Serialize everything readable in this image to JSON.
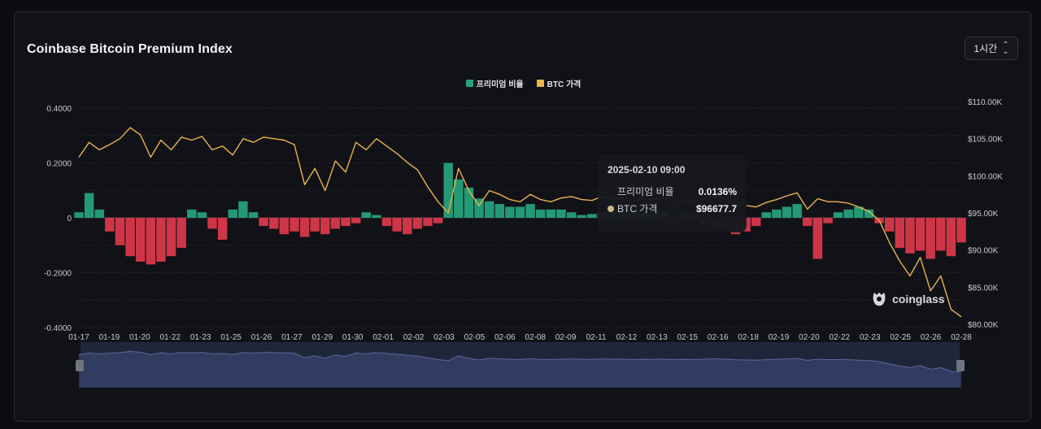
{
  "header": {
    "title": "Coinbase Bitcoin Premium Index",
    "interval_label": "1시간"
  },
  "legend": [
    {
      "label": "프리미엄 비율",
      "color": "#26a17b"
    },
    {
      "label": "BTC 가격",
      "color": "#e9b44c"
    }
  ],
  "tooltip": {
    "datetime": "2025-02-10 09:00",
    "premium_label": "프리미엄 비율",
    "premium_value": "0.0136%",
    "price_label": "BTC 가격",
    "price_value": "$96677.7"
  },
  "watermark": "coinglass",
  "colors": {
    "positive": "#26a17b",
    "negative": "#d9394b",
    "price_line": "#e9b44c",
    "navigator": "#2d3757"
  },
  "chart_data": {
    "type": "bar",
    "title": "Coinbase Bitcoin Premium Index",
    "x_ticks": [
      "01-17",
      "01-19",
      "01-20",
      "01-22",
      "01-23",
      "01-25",
      "01-26",
      "01-27",
      "01-29",
      "01-30",
      "02-01",
      "02-02",
      "02-03",
      "02-05",
      "02-06",
      "02-08",
      "02-09",
      "02-11",
      "02-12",
      "02-13",
      "02-15",
      "02-16",
      "02-18",
      "02-19",
      "02-20",
      "02-22",
      "02-23",
      "02-25",
      "02-26",
      "02-28"
    ],
    "y_left": {
      "ticks": [
        "0.4000",
        "0.2000",
        "0",
        "-0.2000",
        "-0.4000"
      ],
      "range": [
        -0.4,
        0.4
      ]
    },
    "y_right": {
      "ticks": [
        "$110.00K",
        "$105.00K",
        "$100.00K",
        "$95.00K",
        "$90.00K",
        "$85.00K",
        "$80.00K"
      ],
      "range": [
        80000,
        110000
      ]
    },
    "grid": true,
    "legend_position": "top-center",
    "series": [
      {
        "name": "프리미엄 비율",
        "kind": "bar",
        "x": [
          0,
          0.5,
          1,
          1.5,
          2,
          2.5,
          3,
          3.5,
          4,
          4.5,
          5,
          5.5,
          6,
          6.5,
          7,
          7.5,
          8,
          8.5,
          9,
          9.5,
          10,
          10.5,
          11,
          11.5,
          12,
          12.5,
          13,
          13.5,
          14,
          14.5,
          15,
          15.5,
          16,
          16.5,
          17,
          17.5,
          18,
          18.5,
          19,
          19.5,
          20,
          20.5,
          21,
          21.5,
          22,
          22.5,
          23,
          23.5,
          24,
          24.5,
          25,
          25.5,
          26,
          26.5,
          27,
          27.5,
          28,
          28.5,
          29,
          29.5,
          30,
          30.5,
          31,
          31.5,
          32,
          32.5,
          33,
          33.5,
          34,
          34.5,
          35,
          35.5,
          36,
          36.5,
          37,
          37.5,
          38,
          38.5,
          39,
          39.5,
          40,
          40.5,
          41,
          41.5,
          42,
          42.5,
          43
        ],
        "values": [
          0.02,
          0.09,
          0.03,
          -0.05,
          -0.1,
          -0.14,
          -0.16,
          -0.17,
          -0.16,
          -0.14,
          -0.11,
          0.03,
          0.02,
          -0.04,
          -0.08,
          0.03,
          0.06,
          0.02,
          -0.03,
          -0.04,
          -0.06,
          -0.05,
          -0.07,
          -0.05,
          -0.06,
          -0.04,
          -0.03,
          -0.02,
          0.02,
          0.01,
          -0.03,
          -0.05,
          -0.06,
          -0.04,
          -0.03,
          -0.02,
          0.2,
          0.14,
          0.11,
          0.07,
          0.06,
          0.05,
          0.04,
          0.04,
          0.05,
          0.03,
          0.03,
          0.03,
          0.02,
          0.01,
          0.0136,
          0.02,
          0.03,
          0.04,
          0.02,
          0.02,
          0.03,
          0.02,
          -0.02,
          0.02,
          0.01,
          -0.02,
          -0.03,
          -0.04,
          -0.06,
          -0.05,
          -0.03,
          0.02,
          0.03,
          0.04,
          0.05,
          -0.03,
          -0.15,
          -0.02,
          0.02,
          0.03,
          0.04,
          0.03,
          -0.02,
          -0.05,
          -0.11,
          -0.13,
          -0.12,
          -0.15,
          -0.12,
          -0.14,
          -0.09
        ]
      },
      {
        "name": "BTC 가격",
        "kind": "line",
        "x": [
          0,
          0.5,
          1,
          1.5,
          2,
          2.5,
          3,
          3.5,
          4,
          4.5,
          5,
          5.5,
          6,
          6.5,
          7,
          7.5,
          8,
          8.5,
          9,
          9.5,
          10,
          10.5,
          11,
          11.5,
          12,
          12.5,
          13,
          13.5,
          14,
          14.5,
          15,
          15.5,
          16,
          16.5,
          17,
          17.5,
          18,
          18.5,
          19,
          19.5,
          20,
          20.5,
          21,
          21.5,
          22,
          22.5,
          23,
          23.5,
          24,
          24.5,
          25,
          25.5,
          26,
          26.5,
          27,
          27.5,
          28,
          28.5,
          29,
          29.5,
          30,
          30.5,
          31,
          31.5,
          32,
          32.5,
          33,
          33.5,
          34,
          34.5,
          35,
          35.5,
          36,
          36.5,
          37,
          37.5,
          38,
          38.5,
          39,
          39.5,
          40,
          40.5,
          41,
          41.5,
          42,
          42.5,
          43
        ],
        "values": [
          102500,
          104500,
          103500,
          104200,
          105000,
          106500,
          105500,
          102500,
          104800,
          103500,
          105200,
          104800,
          105300,
          103500,
          104000,
          102800,
          105000,
          104500,
          105200,
          105000,
          104800,
          104200,
          98800,
          101000,
          98000,
          102000,
          100500,
          104500,
          103500,
          105000,
          104000,
          103000,
          101800,
          100800,
          98500,
          96500,
          95000,
          101000,
          98000,
          96000,
          98000,
          97500,
          96800,
          96500,
          97500,
          96800,
          96500,
          97000,
          97200,
          96800,
          96677.7,
          97200,
          96900,
          97000,
          96500,
          96900,
          96800,
          97000,
          96200,
          96800,
          96500,
          97000,
          97500,
          96800,
          96200,
          96000,
          95800,
          96400,
          96800,
          97300,
          97700,
          95500,
          96900,
          96500,
          96500,
          96300,
          95800,
          95200,
          94000,
          91000,
          88500,
          86500,
          89000,
          84500,
          86500,
          82000,
          81000
        ]
      }
    ]
  }
}
